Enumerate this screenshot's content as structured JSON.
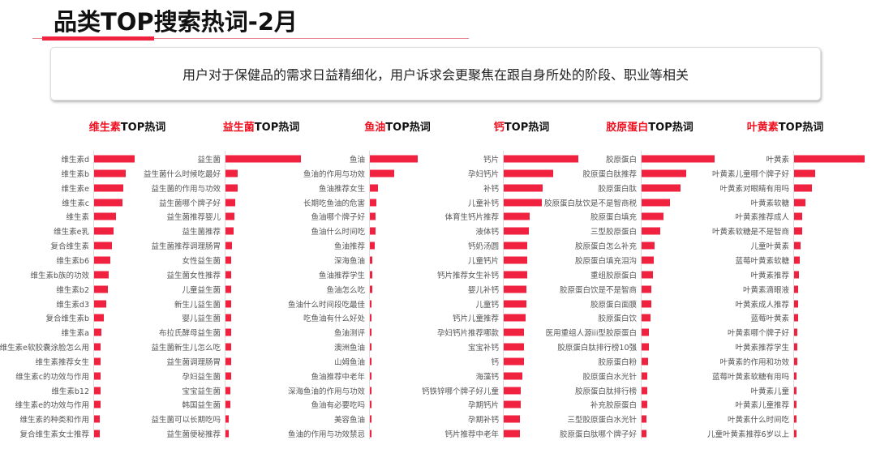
{
  "header": {
    "title": "品类TOP搜索热词-2月",
    "summary": "用户对于保健品的需求日益精细化，用户诉求会更聚焦在跟自身所处的阶段、职业等相关"
  },
  "colors": {
    "accent": "#f0223f",
    "title_highlight": "#f0101f"
  },
  "chart_data": [
    {
      "type": "bar",
      "orientation": "horizontal",
      "title_highlight": "维生素",
      "title_suffix": "TOP热词",
      "unit": "relative search volume (top = 100)",
      "categories": [
        "维生素d",
        "维生素b",
        "维生素e",
        "维生素c",
        "维生素",
        "维生素e乳",
        "复合维生素",
        "维生素b6",
        "维生素b族的功效",
        "维生素b2",
        "维生素d3",
        "复合维生素b",
        "维生素a",
        "维生素e软胶囊涂脸怎么用",
        "维生素推荐女生",
        "维生素c的功效与作用",
        "维生素b12",
        "维生素e的功效与作用",
        "维生素的种类和作用",
        "复合维生素女士推荐"
      ],
      "values": [
        100,
        78,
        72,
        70,
        54,
        48,
        44,
        40,
        36,
        34,
        30,
        24,
        18,
        16,
        16,
        16,
        16,
        16,
        14,
        14
      ]
    },
    {
      "type": "bar",
      "orientation": "horizontal",
      "title_highlight": "益生菌",
      "title_suffix": "TOP热词",
      "unit": "relative search volume (top = 100)",
      "categories": [
        "益生菌",
        "益生菌什么时候吃最好",
        "益生菌的作用与功效",
        "益生菌哪个牌子好",
        "益生菌推荐婴儿",
        "益生菌推荐",
        "益生菌推荐调理肠胃",
        "女性益生菌",
        "益生菌女性推荐",
        "儿童益生菌",
        "新生儿益生菌",
        "婴儿益生菌",
        "布拉氏酵母益生菌",
        "益生菌新生儿怎么吃",
        "益生菌调理肠胃",
        "孕妇益生菌",
        "宝宝益生菌",
        "韩国益生菌",
        "益生菌可以长期吃吗",
        "益生菌便秘推荐"
      ],
      "values": [
        100,
        16,
        16,
        13,
        12,
        11,
        9,
        8,
        8,
        8,
        8,
        8,
        7,
        7,
        7,
        7,
        6,
        6,
        4,
        4
      ]
    },
    {
      "type": "bar",
      "orientation": "horizontal",
      "title_highlight": "鱼油",
      "title_suffix": "TOP热词",
      "unit": "relative search volume (top = 100)",
      "categories": [
        "鱼油",
        "鱼油的作用与功效",
        "鱼油推荐女生",
        "长期吃鱼油的危害",
        "鱼油哪个牌子好",
        "鱼油什么时间吃",
        "鱼油推荐",
        "深海鱼油",
        "鱼油推荐学生",
        "鱼油怎么吃",
        "鱼油什么时间段吃最佳",
        "吃鱼油有什么好处",
        "鱼油测评",
        "澳洲鱼油",
        "山姆鱼油",
        "鱼油推荐中老年",
        "深海鱼油的作用与功效",
        "鱼油有必要吃吗",
        "美容鱼油",
        "鱼油的作用与功效禁忌"
      ],
      "values": [
        100,
        50,
        17,
        14,
        12,
        12,
        10,
        5,
        5,
        5,
        3,
        3,
        3,
        3,
        3,
        3,
        3,
        3,
        3,
        3
      ]
    },
    {
      "type": "bar",
      "orientation": "horizontal",
      "title_highlight": "钙",
      "title_suffix": "TOP热词",
      "unit": "relative search volume (top = 100)",
      "categories": [
        "钙片",
        "孕妇钙片",
        "补钙",
        "儿童补钙",
        "体育生钙片推荐",
        "液体钙",
        "钙奶汤圆",
        "儿童钙片",
        "钙片推荐女生补钙",
        "婴儿补钙",
        "儿童钙",
        "钙片儿童推荐",
        "孕妇钙片推荐哪款",
        "宝宝补钙",
        "钙",
        "海藻钙",
        "钙铁锌哪个牌子好儿童",
        "孕期钙片",
        "孕期补钙",
        "钙片推荐中老年"
      ],
      "values": [
        100,
        66,
        52,
        51,
        35,
        34,
        32,
        32,
        31,
        30,
        30,
        29,
        27,
        27,
        27,
        25,
        23,
        23,
        22,
        22
      ]
    },
    {
      "type": "bar",
      "orientation": "horizontal",
      "title_highlight": "胶原蛋白",
      "title_suffix": "TOP热词",
      "unit": "relative search volume (top = 100)",
      "categories": [
        "胶原蛋白",
        "胶原蛋白肽推荐",
        "胶原蛋白肽",
        "胶原蛋白肽饮是不是智商税",
        "胶原蛋白填充",
        "三型胶原蛋白",
        "胶原蛋白怎么补充",
        "胶原蛋白填充泪沟",
        "重组胶原蛋白",
        "胶原蛋白饮是不是智商",
        "胶原蛋白面膜",
        "胶原蛋白饮",
        "医用重组人源iii型胶原蛋白",
        "胶原蛋白肽排行榜10强",
        "胶原蛋白粉",
        "胶原蛋白水光针",
        "胶原蛋白肽排行榜",
        "补充胶原蛋白",
        "三型胶原蛋白水光针",
        "胶原蛋白肽哪个牌子好"
      ],
      "values": [
        100,
        61,
        53,
        39,
        30,
        26,
        18,
        17,
        16,
        13,
        13,
        12,
        10,
        10,
        9,
        8,
        8,
        8,
        7,
        7
      ]
    },
    {
      "type": "bar",
      "orientation": "horizontal",
      "title_highlight": "叶黄素",
      "title_suffix": "TOP热词",
      "unit": "relative search volume (top = 100)",
      "categories": [
        "叶黄素",
        "叶黄素儿童哪个牌子好",
        "叶黄素对眼睛有用吗",
        "叶黄素软糖",
        "叶黄素推荐成人",
        "叶黄素软糖是不是智商",
        "儿童叶黄素",
        "蓝莓叶黄素软糖",
        "叶黄素推荐",
        "叶黄素滴眼液",
        "叶黄素成人推荐",
        "蓝莓叶黄素",
        "叶黄素哪个牌子好",
        "叶黄素推荐学生",
        "叶黄素的作用和功效",
        "蓝莓叶黄素软糖有用吗",
        "叶黄素儿童",
        "叶黄素儿童推荐",
        "叶黄素什么时间吃",
        "儿童叶黄素推荐6岁以上"
      ],
      "values": [
        100,
        30,
        25,
        16,
        12,
        12,
        9,
        8,
        7,
        6,
        6,
        6,
        5,
        5,
        5,
        4,
        4,
        4,
        4,
        4
      ]
    }
  ]
}
